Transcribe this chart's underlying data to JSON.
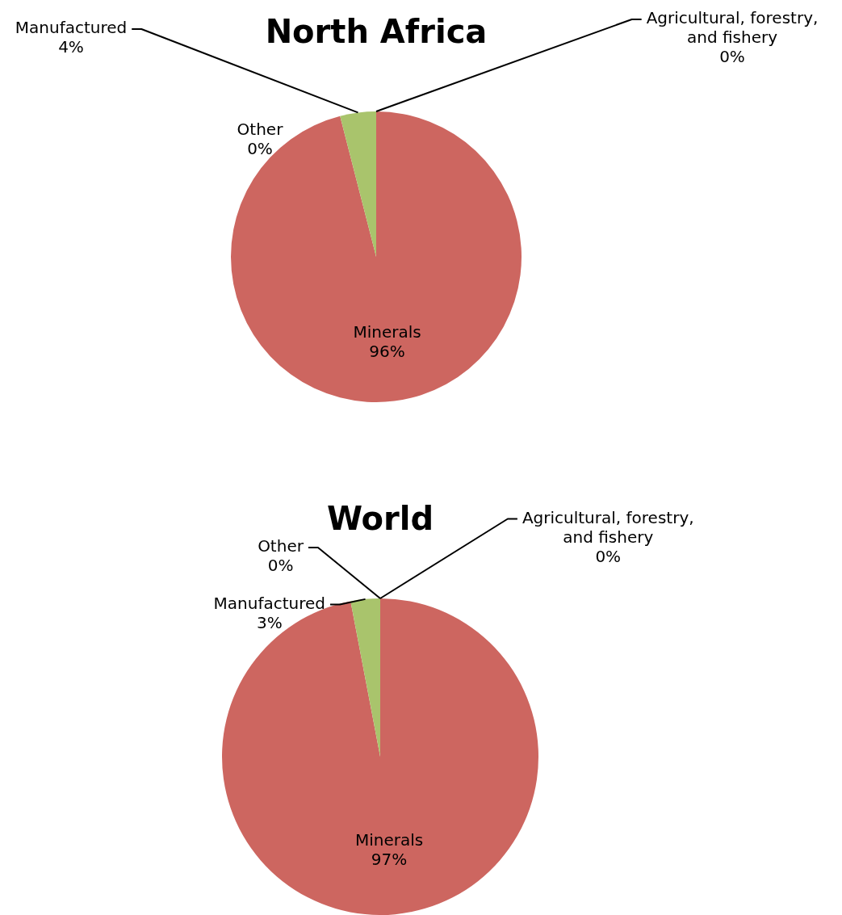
{
  "chart_data": [
    {
      "type": "pie",
      "title": "North Africa",
      "categories": [
        "Agricultural, forestry, and fishery",
        "Minerals",
        "Manufactured",
        "Other"
      ],
      "values": [
        0,
        96,
        4,
        0
      ],
      "value_labels": [
        "0%",
        "96%",
        "4%",
        "0%"
      ],
      "colors": [
        "#4f81bd",
        "#cd6660",
        "#a9c46c",
        "#8064a2"
      ],
      "legend": false
    },
    {
      "type": "pie",
      "title": "World",
      "categories": [
        "Agricultural, forestry, and fishery",
        "Minerals",
        "Manufactured",
        "Other"
      ],
      "values": [
        0,
        97,
        3,
        0
      ],
      "value_labels": [
        "0%",
        "97%",
        "3%",
        "0%"
      ],
      "colors": [
        "#4f81bd",
        "#cd6660",
        "#a9c46c",
        "#8064a2"
      ],
      "legend": false
    }
  ]
}
